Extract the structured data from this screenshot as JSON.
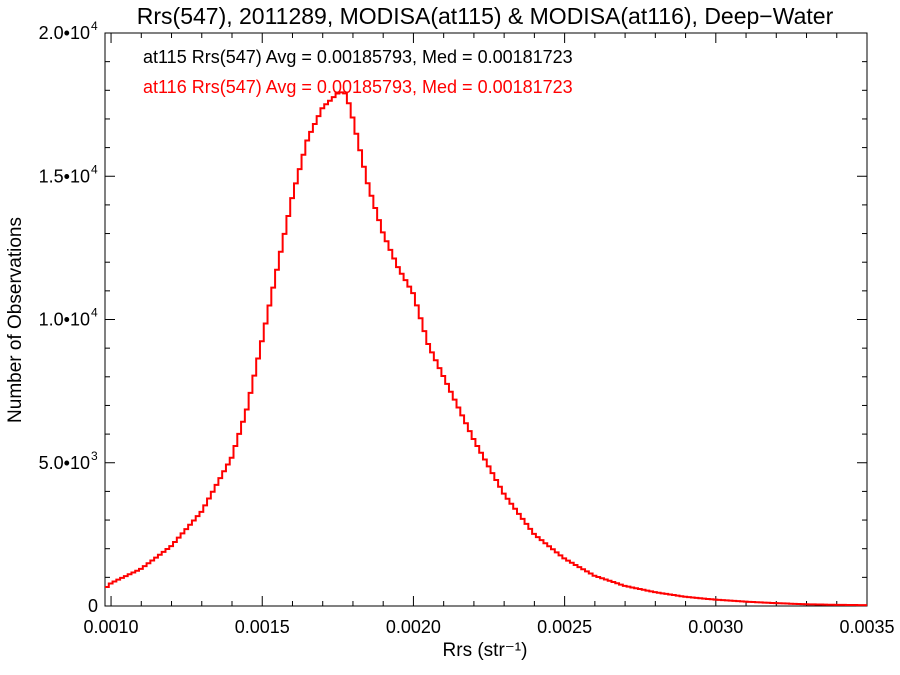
{
  "chart_data": {
    "type": "step",
    "title": "Rrs(547), 2011289, MODISA(at115) & MODISA(at116), Deep−Water",
    "xlabel": "Rrs (str⁻¹)",
    "ylabel": "Number of Observations",
    "xlim": [
      0.00098,
      0.0035
    ],
    "ylim": [
      0,
      20000
    ],
    "x_ticks": [
      {
        "value": 0.001,
        "label": "0.0010"
      },
      {
        "value": 0.0015,
        "label": "0.0015"
      },
      {
        "value": 0.002,
        "label": "0.0020"
      },
      {
        "value": 0.0025,
        "label": "0.0025"
      },
      {
        "value": 0.003,
        "label": "0.0030"
      },
      {
        "value": 0.0035,
        "label": "0.0035"
      }
    ],
    "y_ticks": [
      {
        "value": 0,
        "mant": "0",
        "exp": ""
      },
      {
        "value": 5000,
        "mant": "5.0•10",
        "exp": "3"
      },
      {
        "value": 10000,
        "mant": "1.0•10",
        "exp": "4"
      },
      {
        "value": 15000,
        "mant": "1.5•10",
        "exp": "4"
      },
      {
        "value": 20000,
        "mant": "2.0•10",
        "exp": "4"
      }
    ],
    "grid": false,
    "legend_position": "top-left",
    "annotations": [
      {
        "text": "at115 Rrs(547) Avg = 0.00185793, Med = 0.00181723",
        "color": "#000000"
      },
      {
        "text": "at116 Rrs(547) Avg = 0.00185793, Med = 0.00181723",
        "color": "#ff0000"
      }
    ],
    "series": [
      {
        "color": "#ff0000",
        "x": [
          0.00098,
          0.001,
          0.0011,
          0.0012,
          0.0013,
          0.0014,
          0.00145,
          0.0015,
          0.00155,
          0.0016,
          0.00165,
          0.0017,
          0.00173,
          0.00175,
          0.00177,
          0.00178,
          0.0018,
          0.00185,
          0.0019,
          0.00195,
          0.002,
          0.00205,
          0.0021,
          0.0022,
          0.0023,
          0.0024,
          0.0025,
          0.0026,
          0.0027,
          0.0028,
          0.0029,
          0.003,
          0.0031,
          0.0032,
          0.0033,
          0.0034,
          0.0035
        ],
        "y": [
          600,
          800,
          1300,
          2100,
          3300,
          5200,
          6900,
          9300,
          11800,
          14300,
          16300,
          17400,
          17700,
          17900,
          17950,
          17800,
          17000,
          14700,
          13000,
          11800,
          10900,
          9100,
          8000,
          5800,
          3900,
          2500,
          1650,
          1050,
          700,
          480,
          320,
          220,
          150,
          100,
          60,
          40,
          30
        ]
      }
    ]
  }
}
